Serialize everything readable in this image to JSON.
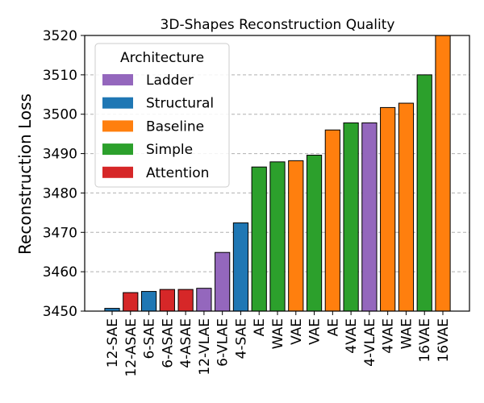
{
  "chart_data": {
    "type": "bar",
    "title": "3D-Shapes Reconstruction Quality",
    "xlabel": "",
    "ylabel": "Reconstruction Loss",
    "ylim": [
      3450,
      3520
    ],
    "yticks": [
      3450,
      3460,
      3470,
      3480,
      3490,
      3500,
      3510,
      3520
    ],
    "grid": "y-dashed",
    "legend": {
      "title": "Architecture",
      "placement": "top-left",
      "entries": [
        {
          "name": "Ladder",
          "color": "#9467bd"
        },
        {
          "name": "Structural",
          "color": "#1f77b4"
        },
        {
          "name": "Baseline",
          "color": "#ff7f0e"
        },
        {
          "name": "Simple",
          "color": "#2ca02c"
        },
        {
          "name": "Attention",
          "color": "#d62728"
        }
      ]
    },
    "bars": [
      {
        "category": "12-SAE",
        "value": 3450.7,
        "group": "Structural"
      },
      {
        "category": "12-ASAE",
        "value": 3454.7,
        "group": "Attention"
      },
      {
        "category": "6-SAE",
        "value": 3455.0,
        "group": "Structural"
      },
      {
        "category": "6-ASAE",
        "value": 3455.5,
        "group": "Attention"
      },
      {
        "category": "4-ASAE",
        "value": 3455.5,
        "group": "Attention"
      },
      {
        "category": "12-VLAE",
        "value": 3455.8,
        "group": "Ladder"
      },
      {
        "category": "6-VLAE",
        "value": 3464.9,
        "group": "Ladder"
      },
      {
        "category": "4-SAE",
        "value": 3472.4,
        "group": "Structural"
      },
      {
        "category": "AE",
        "value": 3486.6,
        "group": "Simple"
      },
      {
        "category": "WAE",
        "value": 3487.9,
        "group": "Simple"
      },
      {
        "category": "VAE",
        "value": 3488.2,
        "group": "Baseline"
      },
      {
        "category": "VAE",
        "value": 3489.6,
        "group": "Simple"
      },
      {
        "category": "AE",
        "value": 3496.0,
        "group": "Baseline"
      },
      {
        "category": "4VAE",
        "value": 3497.8,
        "group": "Simple"
      },
      {
        "category": "4-VLAE",
        "value": 3497.8,
        "group": "Ladder"
      },
      {
        "category": "4VAE",
        "value": 3501.7,
        "group": "Baseline"
      },
      {
        "category": "WAE",
        "value": 3502.8,
        "group": "Baseline"
      },
      {
        "category": "16VAE",
        "value": 3510.0,
        "group": "Simple"
      },
      {
        "category": "16VAE",
        "value": 3520.0,
        "group": "Baseline"
      }
    ]
  }
}
